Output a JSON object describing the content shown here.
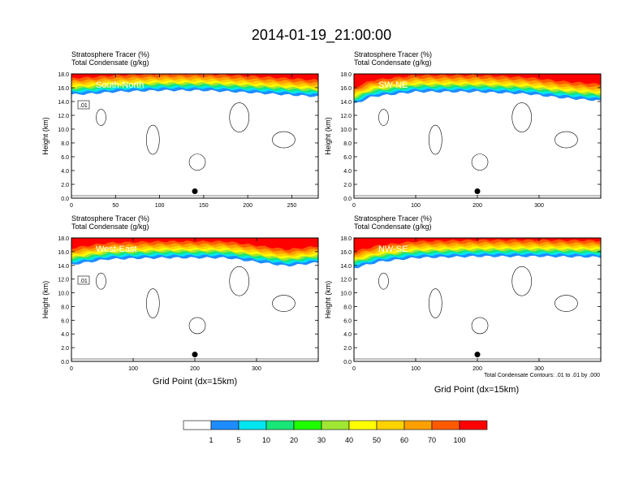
{
  "title": "2014-01-19_21:00:00",
  "panel_header": {
    "line1": "Stratosphere Tracer   (%)",
    "line2": "Total Condensate   (g/kg)"
  },
  "ylabel": "Height (km)",
  "xlabel": "Grid Point (dx=15km)",
  "contour_note": "Total Condensate Contours: .01 to .01 by .000",
  "colors": {
    "levels": [
      "#ffffff",
      "#1e8cff",
      "#00e6f0",
      "#19e678",
      "#1eff00",
      "#a0e632",
      "#ffff00",
      "#ffd200",
      "#ffa000",
      "#ff5a00",
      "#ff0000"
    ]
  },
  "colorbar": {
    "labels": [
      "1",
      "5",
      "10",
      "20",
      "30",
      "40",
      "50",
      "60",
      "70",
      "100"
    ]
  },
  "chart_data": [
    {
      "type": "heatmap",
      "label": "South-North",
      "xlim": [
        0,
        280
      ],
      "ylim": [
        0,
        18
      ],
      "xticks": [
        "0",
        "50",
        "100",
        "150",
        "200",
        "250"
      ],
      "yticks": [
        "0.0",
        "2.0",
        "4.0",
        "6.0",
        "8.0",
        "10.0",
        "12.0",
        "14.0",
        "16.0",
        "18.0"
      ],
      "tracer_base": [
        [
          0,
          15.9
        ],
        [
          20,
          16.0
        ],
        [
          50,
          16.3
        ],
        [
          100,
          16.5
        ],
        [
          150,
          16.5
        ],
        [
          200,
          16.2
        ],
        [
          240,
          15.9
        ],
        [
          280,
          15.6
        ]
      ],
      "contour_label": ".01",
      "marker": [
        140,
        1.0
      ]
    },
    {
      "type": "heatmap",
      "label": "SW-NE",
      "xlim": [
        0,
        400
      ],
      "ylim": [
        0,
        18
      ],
      "xticks": [
        "0",
        "100",
        "200",
        "300"
      ],
      "yticks": [
        "0.0",
        "2.0",
        "4.0",
        "6.0",
        "8.0",
        "10.0",
        "12.0",
        "14.0",
        "16.0",
        "18.0"
      ],
      "tracer_base": [
        [
          0,
          14.5
        ],
        [
          30,
          15.6
        ],
        [
          100,
          16.3
        ],
        [
          200,
          16.3
        ],
        [
          280,
          16.0
        ],
        [
          340,
          15.4
        ],
        [
          400,
          15.0
        ]
      ],
      "contour_label": "",
      "marker": [
        200,
        1.0
      ]
    },
    {
      "type": "heatmap",
      "label": "West-East",
      "xlim": [
        0,
        400
      ],
      "ylim": [
        0,
        18
      ],
      "xticks": [
        "0",
        "100",
        "200",
        "300"
      ],
      "yticks": [
        "0.0",
        "2.0",
        "4.0",
        "6.0",
        "8.0",
        "10.0",
        "12.0",
        "14.0",
        "16.0",
        "18.0"
      ],
      "tracer_base": [
        [
          0,
          15.0
        ],
        [
          60,
          15.8
        ],
        [
          150,
          16.0
        ],
        [
          250,
          16.0
        ],
        [
          300,
          15.4
        ],
        [
          350,
          14.8
        ],
        [
          400,
          15.3
        ]
      ],
      "contour_label": ".01",
      "marker": [
        200,
        1.0
      ]
    },
    {
      "type": "heatmap",
      "label": "NW-SE",
      "xlim": [
        0,
        400
      ],
      "ylim": [
        0,
        18
      ],
      "xticks": [
        "0",
        "100",
        "200",
        "300"
      ],
      "yticks": [
        "0.0",
        "2.0",
        "4.0",
        "6.0",
        "8.0",
        "10.0",
        "12.0",
        "14.0",
        "16.0",
        "18.0"
      ],
      "tracer_base": [
        [
          0,
          14.5
        ],
        [
          40,
          15.4
        ],
        [
          100,
          16.0
        ],
        [
          200,
          16.2
        ],
        [
          300,
          16.2
        ],
        [
          400,
          16.1
        ]
      ],
      "contour_label": "",
      "marker": [
        200,
        1.0
      ]
    }
  ]
}
